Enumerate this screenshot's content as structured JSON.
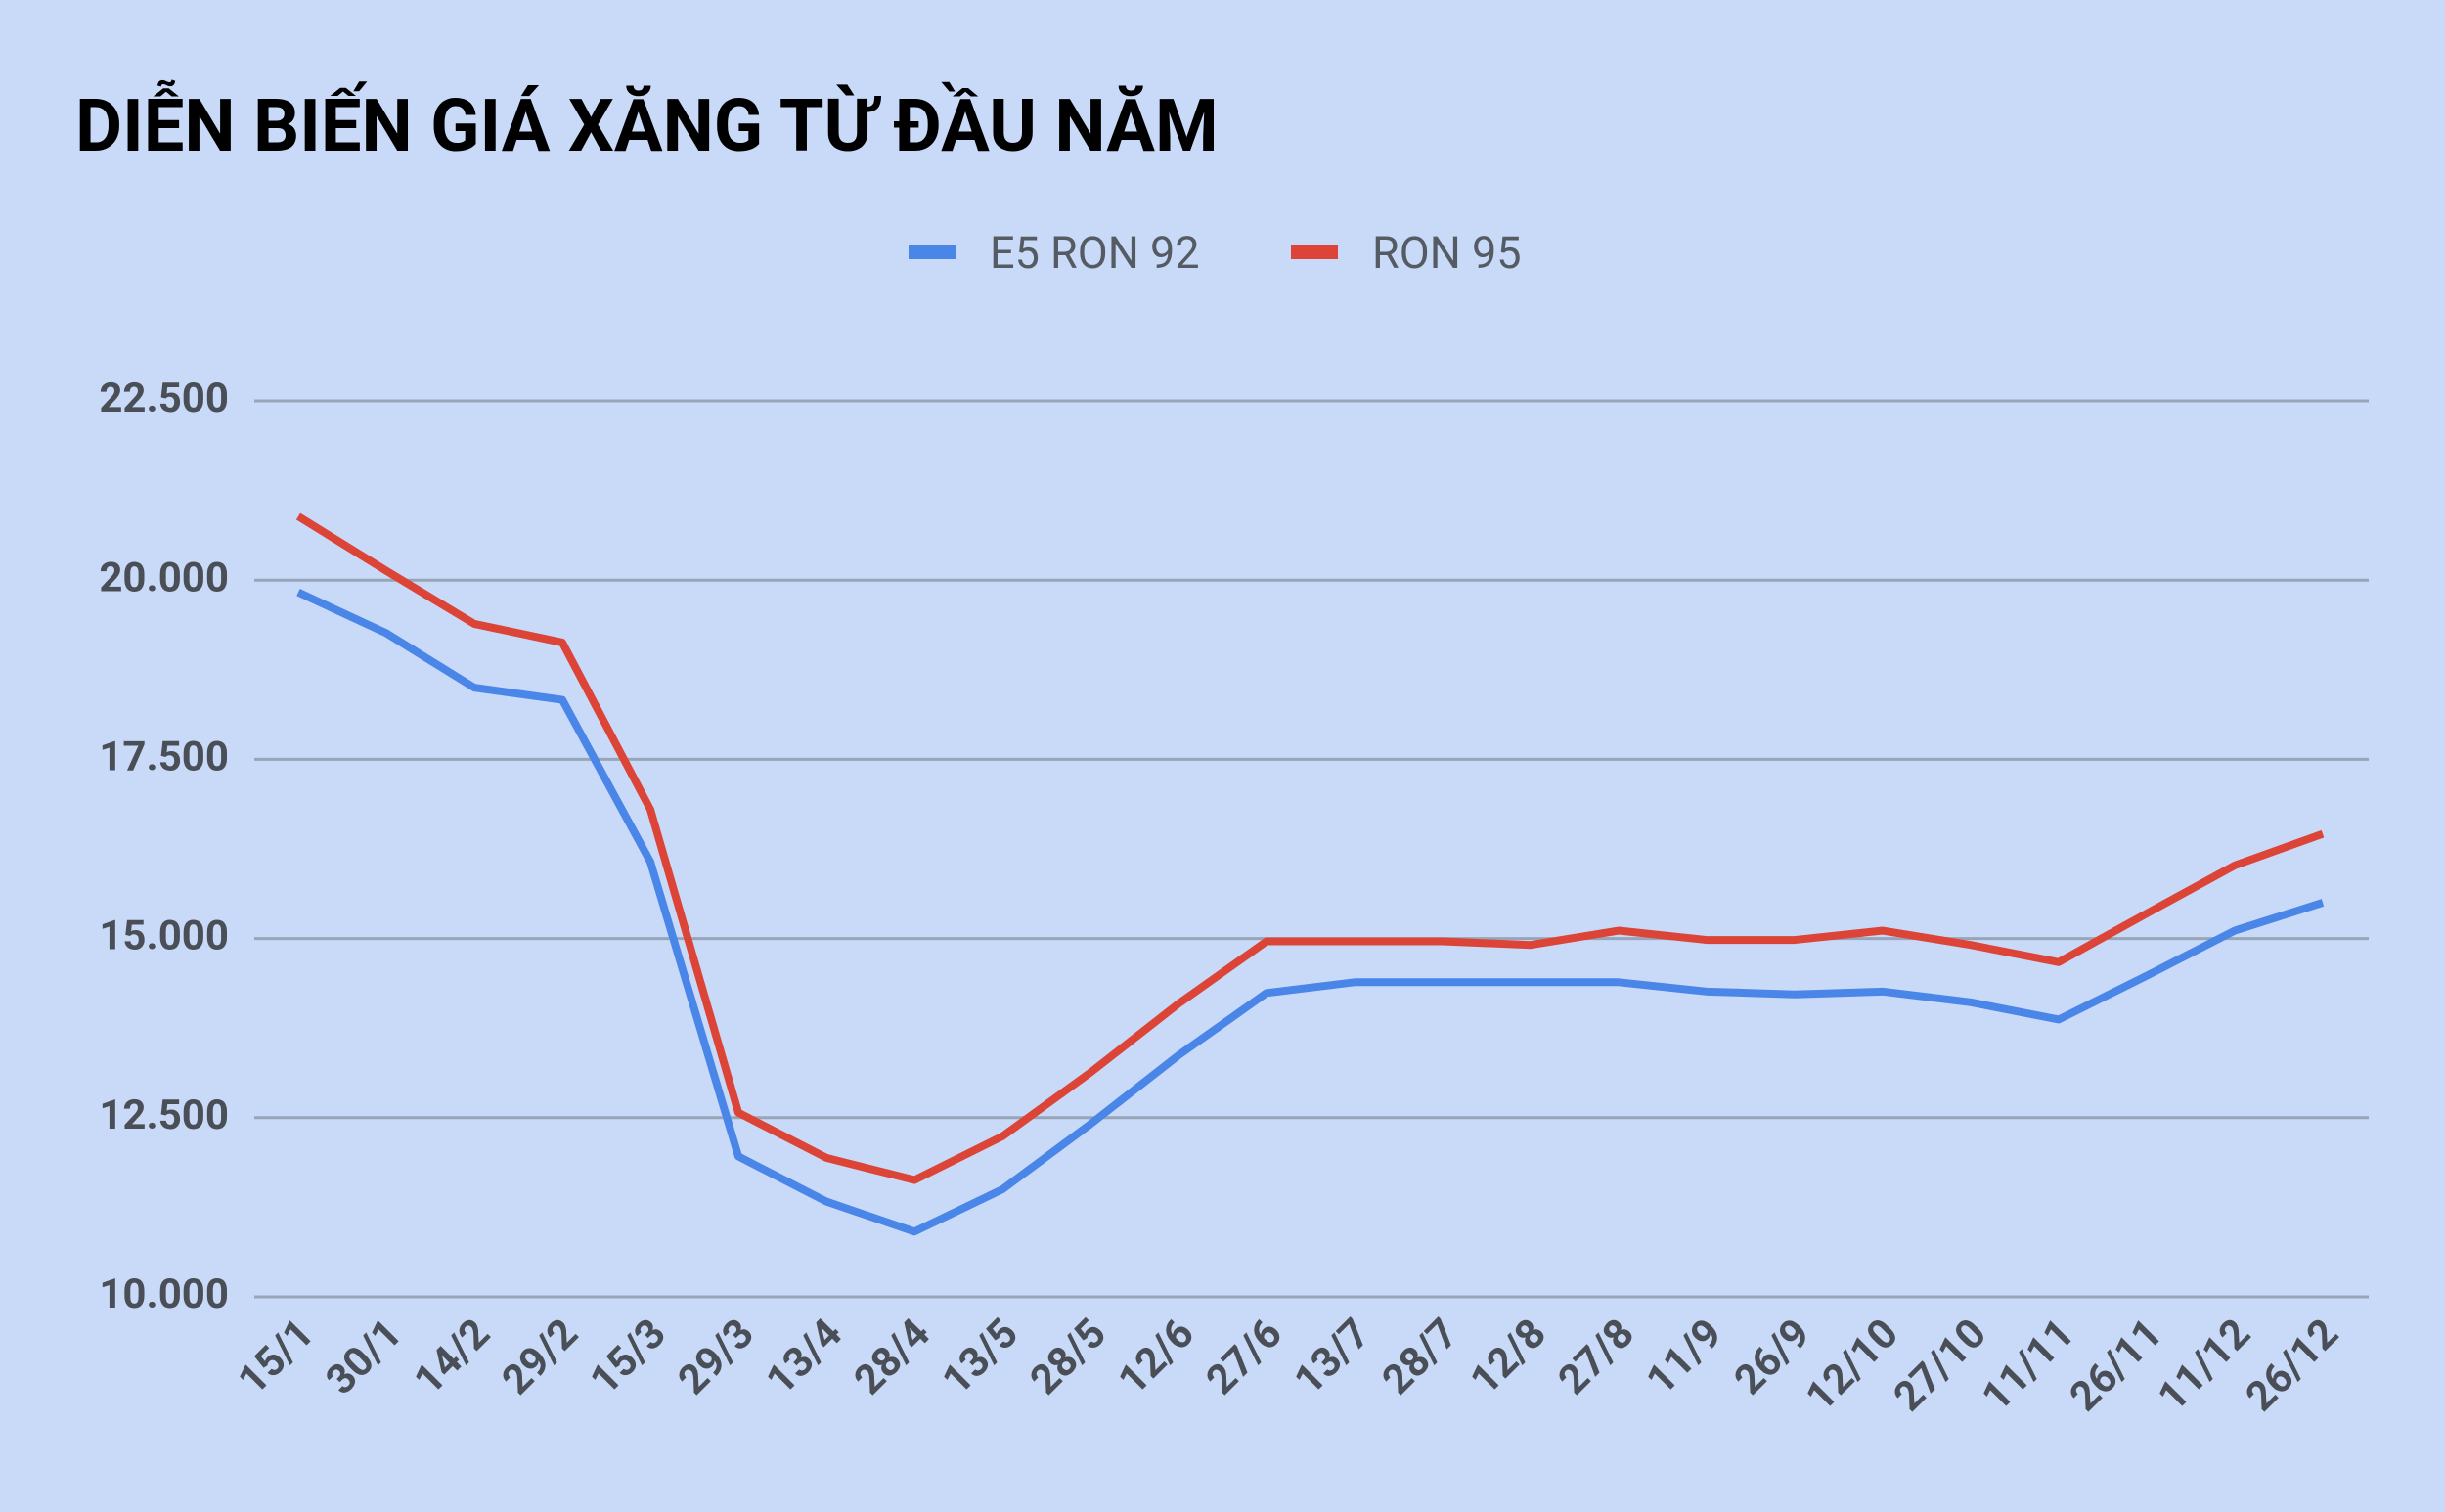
{
  "chart_data": {
    "type": "line",
    "title": "DIỄN BIẾN GIÁ XĂNG TỪ ĐẦU NĂM",
    "categories": [
      "15/1",
      "30/1",
      "14/2",
      "29/2",
      "15/3",
      "29/3",
      "13/4",
      "28/4",
      "13/5",
      "28/5",
      "12/6",
      "27/6",
      "13/7",
      "28/7",
      "12/8",
      "27/8",
      "11/9",
      "26/9",
      "12/10",
      "27/10",
      "11/11",
      "26/11",
      "11/12",
      "26/12"
    ],
    "series": [
      {
        "name": "E5 RON 92",
        "color": "#4a86e8",
        "values": [
          19830,
          19260,
          18500,
          18330,
          16070,
          11960,
          11330,
          10910,
          11500,
          12410,
          13370,
          14240,
          14390,
          14390,
          14390,
          14390,
          14260,
          14220,
          14260,
          14110,
          13870,
          14480,
          15110,
          15500
        ]
      },
      {
        "name": "RON 95",
        "color": "#db4437",
        "values": [
          20890,
          20130,
          19390,
          19130,
          16800,
          12570,
          11940,
          11630,
          12240,
          13130,
          14090,
          14960,
          14960,
          14960,
          14910,
          15110,
          14980,
          14980,
          15110,
          14910,
          14670,
          15350,
          16020,
          16460
        ]
      }
    ],
    "ylim": [
      10000,
      22500
    ],
    "yticks": [
      {
        "value": 10000,
        "label": "10.000"
      },
      {
        "value": 12500,
        "label": "12.500"
      },
      {
        "value": 15000,
        "label": "15.000"
      },
      {
        "value": 17500,
        "label": "17.500"
      },
      {
        "value": 20000,
        "label": "20.000"
      },
      {
        "value": 22500,
        "label": "22.500"
      }
    ],
    "grid": true,
    "legend": "top"
  }
}
